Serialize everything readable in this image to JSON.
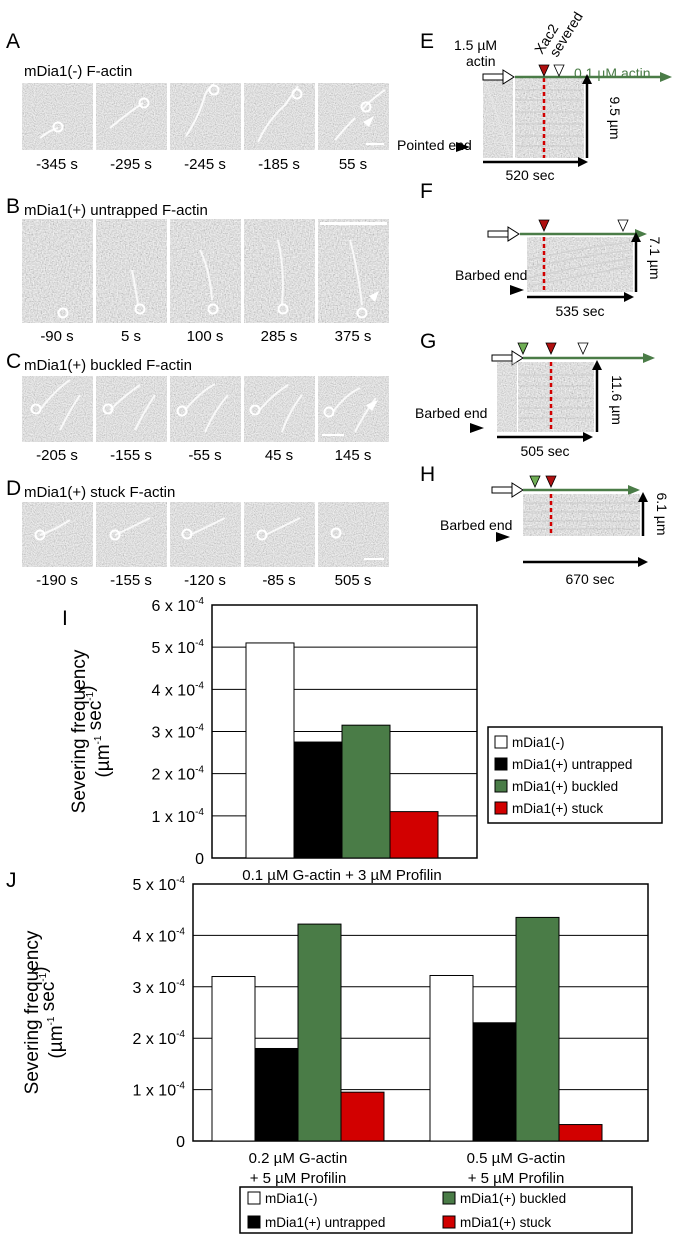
{
  "panel_letters": {
    "A": "A",
    "B": "B",
    "C": "C",
    "D": "D",
    "E": "E",
    "F": "F",
    "G": "G",
    "H": "H",
    "I": "I",
    "J": "J"
  },
  "micrographs": [
    {
      "letter": "A",
      "title": "mDia1(-) F-actin",
      "times": [
        "-345 s",
        "-295 s",
        "-245 s",
        "-185 s",
        "55 s"
      ]
    },
    {
      "letter": "B",
      "title": "mDia1(+) untrapped F-actin",
      "times": [
        "-90 s",
        "5 s",
        "100 s",
        "285 s",
        "375 s"
      ]
    },
    {
      "letter": "C",
      "title": "mDia1(+) buckled F-actin",
      "times": [
        "-205 s",
        "-155 s",
        "-55 s",
        "45 s",
        "145 s"
      ]
    },
    {
      "letter": "D",
      "title": "mDia1(+) stuck F-actin",
      "times": [
        "-190 s",
        "-155 s",
        "-120 s",
        "-85 s",
        "505 s"
      ]
    }
  ],
  "kymographs": {
    "E": {
      "actin_high": "1.5 µM",
      "actin_word": "actin",
      "actin_low": "0.1 µM actin",
      "xac2": "Xac2",
      "severed": "severed",
      "end": "Pointed end",
      "length": "9.5 µm",
      "duration": "520 sec"
    },
    "F": {
      "end": "Barbed end",
      "length": "7.1 µm",
      "duration": "535 sec"
    },
    "G": {
      "end": "Barbed end",
      "length": "11.6 µm",
      "duration": "505 sec"
    },
    "H": {
      "end": "Barbed end",
      "length": "6.1 µm",
      "duration": "670 sec"
    }
  },
  "colors": {
    "green": "#4a7c47",
    "red": "#d20000",
    "dark_red": "#b01010",
    "light_green": "#6fae55",
    "white": "#ffffff",
    "black": "#000000"
  },
  "legend": [
    "mDia1(-)",
    "mDia1(+) untrapped",
    "mDia1(+) buckled",
    "mDia1(+) stuck"
  ],
  "chart_data": [
    {
      "type": "bar",
      "ylabel": "Severing frequency",
      "ylabel_unit": "(µm-1 sec-1)",
      "ylim": [
        0,
        0.0006
      ],
      "yticks": [
        "0",
        "1 x 10-4",
        "2 x 10-4",
        "3 x 10-4",
        "4 x 10-4",
        "5 x 10-4",
        "6 x 10-4"
      ],
      "grid": true,
      "legend_position": "right",
      "categories": [
        "0.1 µM G-actin + 3 µM Profilin"
      ],
      "series": [
        {
          "name": "mDia1(-)",
          "values": [
            0.00051
          ]
        },
        {
          "name": "mDia1(+) untrapped",
          "values": [
            0.000275
          ]
        },
        {
          "name": "mDia1(+) buckled",
          "values": [
            0.000315
          ]
        },
        {
          "name": "mDia1(+) stuck",
          "values": [
            0.00011
          ]
        }
      ]
    },
    {
      "type": "bar",
      "ylabel": "Severing frequency",
      "ylabel_unit": "(µm-1 sec-1)",
      "ylim": [
        0,
        0.0005
      ],
      "yticks": [
        "0",
        "1 x 10-4",
        "2 x 10-4",
        "3 x 10-4",
        "4 x 10-4",
        "5 x 10-4"
      ],
      "grid": true,
      "legend_position": "bottom",
      "categories": [
        [
          "0.2 µM G-actin",
          "+ 5 µM Profilin"
        ],
        [
          "0.5 µM G-actin",
          "+ 5 µM Profilin"
        ]
      ],
      "series": [
        {
          "name": "mDia1(-)",
          "values": [
            0.00032,
            0.000322
          ]
        },
        {
          "name": "mDia1(+) untrapped",
          "values": [
            0.00018,
            0.00023
          ]
        },
        {
          "name": "mDia1(+) buckled",
          "values": [
            0.000422,
            0.000435
          ]
        },
        {
          "name": "mDia1(+) stuck",
          "values": [
            9.5e-05,
            3.2e-05
          ]
        }
      ]
    }
  ]
}
